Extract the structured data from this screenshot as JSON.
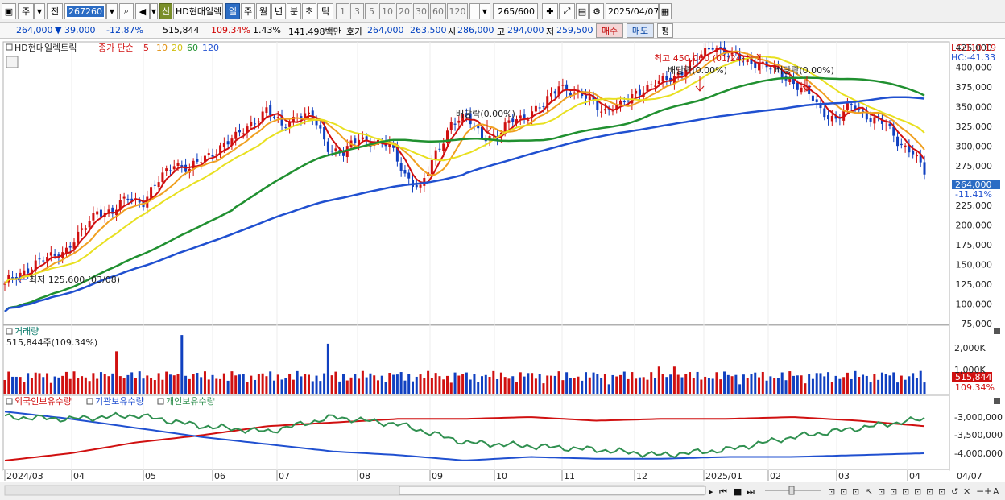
{
  "toolbar": {
    "period_primary": "주",
    "period_secondary": "전",
    "code": "267260",
    "new_badge": "신",
    "stock_name": "HD현대일렉",
    "periods": [
      "일",
      "주",
      "월",
      "년",
      "분",
      "초",
      "틱"
    ],
    "minutes": [
      "1",
      "3",
      "5",
      "10",
      "20",
      "30",
      "60",
      "120"
    ],
    "count": "265",
    "count_total": "/600",
    "date": "2025/04/07"
  },
  "info": {
    "price": "264,000",
    "change": "▼ 39,000",
    "change_pct": "-12.87%",
    "volume": "515,844",
    "volume_ratio": "109.34%",
    "turnover": "1.43%",
    "amount": "141,498백만",
    "bid_label": "호가",
    "bid_price": "264,000",
    "ask_price": "263,500",
    "open_label": "시",
    "open_price": "286,000",
    "high_label": "고",
    "high_price": "294,000",
    "low_label": "저",
    "low_price": "259,500",
    "buy_label": "매수",
    "sell_label": "매도",
    "eval_label": "평"
  },
  "price_panel": {
    "stock_label": "HD현대일렉트릭",
    "legend_prefix": "종가 단순",
    "ma_labels": [
      "5",
      "10",
      "20",
      "60",
      "120"
    ],
    "ma_colors": [
      "#d01010",
      "#f0a020",
      "#e8e020",
      "#209030",
      "#2050d0"
    ],
    "lc": "LC:110.19",
    "hc": "HC:-41.33",
    "current_price": "264,000",
    "current_pct": "-11.41%",
    "annotations": {
      "high": "최고 450,000 (01/24)",
      "low": "최저 125,600 (03/08)",
      "dividend": "배당락(0.00%)"
    }
  },
  "volume_panel": {
    "title": "거래량",
    "value": "515,844주(109.34%)",
    "current": "515,844",
    "current_pct": "109.34%"
  },
  "holdings_panel": {
    "legend": [
      "외국인보유수량",
      "기관보유수량",
      "개인보유수량"
    ],
    "colors": [
      "#d01010",
      "#2050d0",
      "#309050"
    ]
  },
  "chart_data": {
    "type": "candlestick",
    "title": "",
    "x_labels": [
      "2024/03",
      "04",
      "05",
      "06",
      "07",
      "08",
      "09",
      "10",
      "11",
      "12",
      "2025/01",
      "02",
      "03",
      "04",
      "04/07"
    ],
    "price_axis": [
      "425,000",
      "400,000",
      "375,000",
      "350,000",
      "325,000",
      "300,000",
      "275,000",
      "250,000",
      "225,000",
      "200,000",
      "175,000",
      "150,000",
      "125,000",
      "100,000",
      "75,000"
    ],
    "price_ylim": [
      75000,
      430000
    ],
    "volume_axis": [
      "2,000K",
      "1,000K"
    ],
    "holdings_axis": [
      "-3,000,000",
      "-3,500,000",
      "-4,000,000"
    ],
    "close_path": [
      [
        0,
        125600
      ],
      [
        4,
        140000
      ],
      [
        8,
        150000
      ],
      [
        12,
        160000
      ],
      [
        16,
        170000
      ],
      [
        20,
        190000
      ],
      [
        24,
        220000
      ],
      [
        28,
        215000
      ],
      [
        32,
        235000
      ],
      [
        36,
        230000
      ],
      [
        40,
        255000
      ],
      [
        44,
        280000
      ],
      [
        48,
        270000
      ],
      [
        52,
        285000
      ],
      [
        56,
        300000
      ],
      [
        60,
        310000
      ],
      [
        64,
        330000
      ],
      [
        68,
        345000
      ],
      [
        72,
        325000
      ],
      [
        76,
        340000
      ],
      [
        80,
        335000
      ],
      [
        84,
        300000
      ],
      [
        88,
        290000
      ],
      [
        92,
        310000
      ],
      [
        96,
        305000
      ],
      [
        100,
        300000
      ],
      [
        104,
        265000
      ],
      [
        108,
        245000
      ],
      [
        112,
        290000
      ],
      [
        116,
        330000
      ],
      [
        120,
        335000
      ],
      [
        124,
        315000
      ],
      [
        128,
        310000
      ],
      [
        132,
        335000
      ],
      [
        136,
        340000
      ],
      [
        140,
        350000
      ],
      [
        144,
        380000
      ],
      [
        148,
        365000
      ],
      [
        152,
        360000
      ],
      [
        156,
        345000
      ],
      [
        160,
        350000
      ],
      [
        164,
        370000
      ],
      [
        168,
        375000
      ],
      [
        172,
        385000
      ],
      [
        176,
        395000
      ],
      [
        180,
        410000
      ],
      [
        184,
        430000
      ],
      [
        188,
        415000
      ],
      [
        192,
        410000
      ],
      [
        196,
        405000
      ],
      [
        200,
        395000
      ],
      [
        204,
        385000
      ],
      [
        208,
        370000
      ],
      [
        212,
        345000
      ],
      [
        216,
        335000
      ],
      [
        220,
        350000
      ],
      [
        224,
        340000
      ],
      [
        228,
        330000
      ],
      [
        232,
        305000
      ],
      [
        236,
        295000
      ],
      [
        239,
        264000
      ]
    ],
    "holdings_series": [
      {
        "name": "외국인보유수량",
        "values": [
          -4200000,
          -4000000,
          -3700000,
          -3500000,
          -3250000,
          -3150000,
          -3050000,
          -3050000,
          -3000000,
          -3100000,
          -3050000,
          -3050000,
          -3000000,
          -3100000,
          -3250000
        ]
      },
      {
        "name": "기관보유수량",
        "values": [
          -2850000,
          -3050000,
          -3300000,
          -3550000,
          -3750000,
          -3950000,
          -4050000,
          -4200000,
          -4100000,
          -4150000,
          -4150000,
          -4100000,
          -4100000,
          -4050000,
          -4000000
        ]
      },
      {
        "name": "개인보유수량",
        "values": [
          -3000000,
          -3050000,
          -2950000,
          -3250000,
          -3400000,
          -3000000,
          -3200000,
          -3700000,
          -3800000,
          -3900000,
          -4050000,
          -3900000,
          -3550000,
          -3300000,
          -3050000
        ]
      }
    ]
  }
}
